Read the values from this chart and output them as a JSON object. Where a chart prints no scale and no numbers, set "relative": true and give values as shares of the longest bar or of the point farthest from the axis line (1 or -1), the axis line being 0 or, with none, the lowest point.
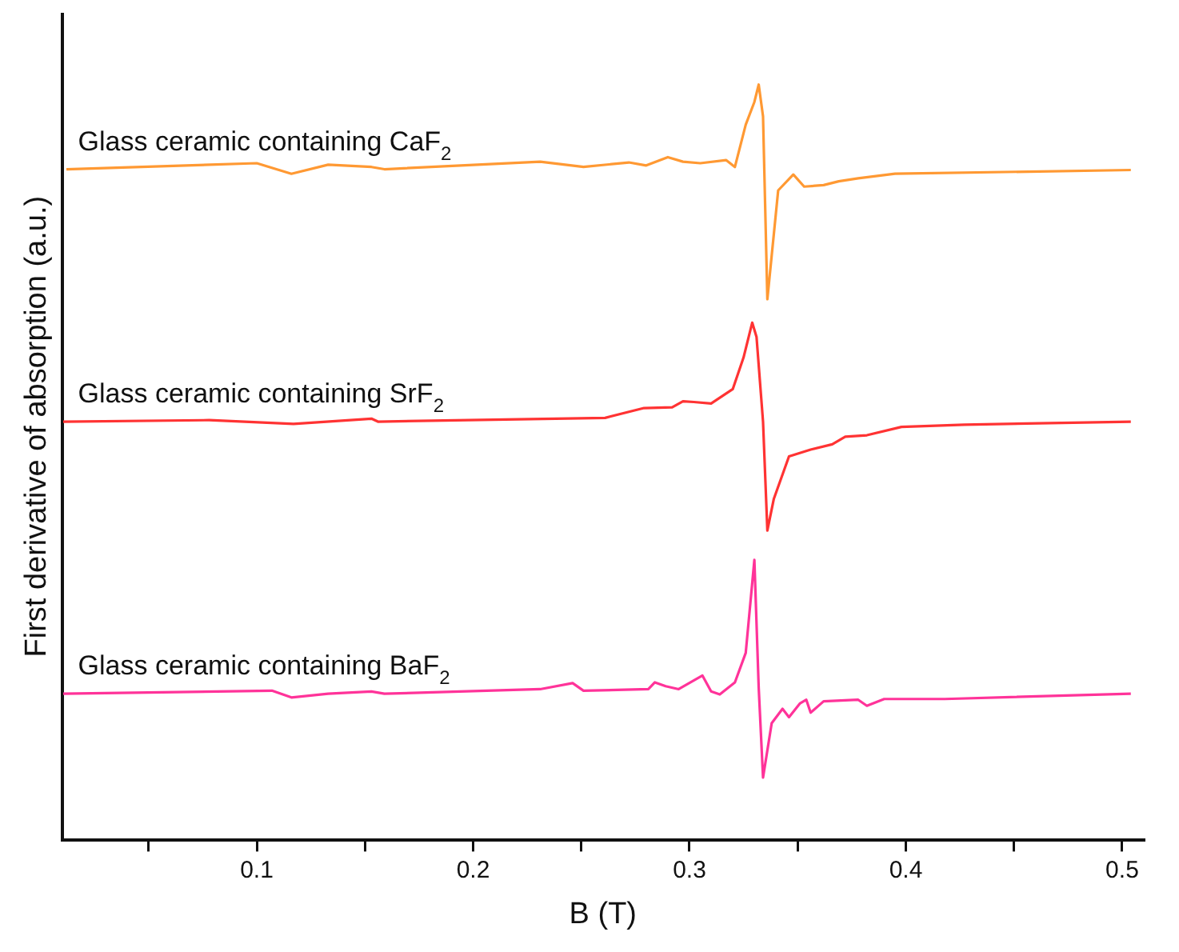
{
  "chart_data": {
    "type": "line",
    "relative": true,
    "xlabel": "B (T)",
    "ylabel": "First derivative of absorption (a.u.)",
    "xlim": [
      0.01,
      0.51
    ],
    "xticks": [
      {
        "value": 0.05,
        "label": null
      },
      0.1,
      {
        "value": 0.15,
        "label": null
      },
      0.2,
      {
        "value": 0.25,
        "label": null
      },
      0.3,
      {
        "value": 0.35,
        "label": null
      },
      0.4,
      {
        "value": 0.45,
        "label": null
      },
      0.5
    ],
    "grid": false,
    "legend": false,
    "tick_labels": "x",
    "marker": "none",
    "line_style": "solid",
    "series": [
      {
        "name": "Glass ceramic containing CaF$_{2}$",
        "color": "#ff9933",
        "x": [
          0.012,
          0.1,
          0.116,
          0.133,
          0.153,
          0.159,
          0.231,
          0.251,
          0.272,
          0.28,
          0.29,
          0.297,
          0.305,
          0.317,
          0.321,
          0.326,
          0.33,
          0.332,
          0.334,
          0.336,
          0.341,
          0.348,
          0.353,
          0.362,
          0.369,
          0.378,
          0.395,
          0.504
        ],
        "values": [
          0.888,
          0.896,
          0.882,
          0.894,
          0.891,
          0.888,
          0.898,
          0.891,
          0.897,
          0.893,
          0.904,
          0.898,
          0.896,
          0.9,
          0.891,
          0.947,
          0.977,
          1,
          0.958,
          0.716,
          0.86,
          0.881,
          0.865,
          0.867,
          0.872,
          0.876,
          0.882,
          0.887
        ]
      },
      {
        "name": "Glass ceramic containing SrF$_{2}$",
        "color": "#ff3333",
        "x": [
          0.0105,
          0.078,
          0.117,
          0.153,
          0.156,
          0.261,
          0.279,
          0.292,
          0.297,
          0.302,
          0.31,
          0.32,
          0.325,
          0.329,
          0.331,
          0.334,
          0.336,
          0.339,
          0.346,
          0.356,
          0.366,
          0.372,
          0.382,
          0.398,
          0.427,
          0.504
        ],
        "values": [
          0.554,
          0.556,
          0.551,
          0.558,
          0.554,
          0.559,
          0.572,
          0.573,
          0.581,
          0.58,
          0.578,
          0.597,
          0.639,
          0.685,
          0.666,
          0.554,
          0.41,
          0.452,
          0.508,
          0.517,
          0.524,
          0.534,
          0.536,
          0.547,
          0.55,
          0.554
        ]
      },
      {
        "name": "Glass ceramic containing BaF$_{2}$",
        "color": "#ff3399",
        "x": [
          0.0105,
          0.107,
          0.116,
          0.133,
          0.153,
          0.159,
          0.231,
          0.246,
          0.251,
          0.281,
          0.284,
          0.289,
          0.295,
          0.306,
          0.31,
          0.314,
          0.321,
          0.326,
          0.33,
          0.332,
          0.334,
          0.338,
          0.343,
          0.346,
          0.351,
          0.354,
          0.356,
          0.362,
          0.378,
          0.382,
          0.39,
          0.418,
          0.504
        ],
        "values": [
          0.194,
          0.198,
          0.189,
          0.194,
          0.197,
          0.194,
          0.2,
          0.208,
          0.198,
          0.2,
          0.209,
          0.204,
          0.2,
          0.218,
          0.197,
          0.193,
          0.209,
          0.248,
          0.371,
          0.202,
          0.083,
          0.155,
          0.174,
          0.163,
          0.181,
          0.186,
          0.169,
          0.184,
          0.186,
          0.178,
          0.187,
          0.187,
          0.194
        ]
      }
    ]
  }
}
